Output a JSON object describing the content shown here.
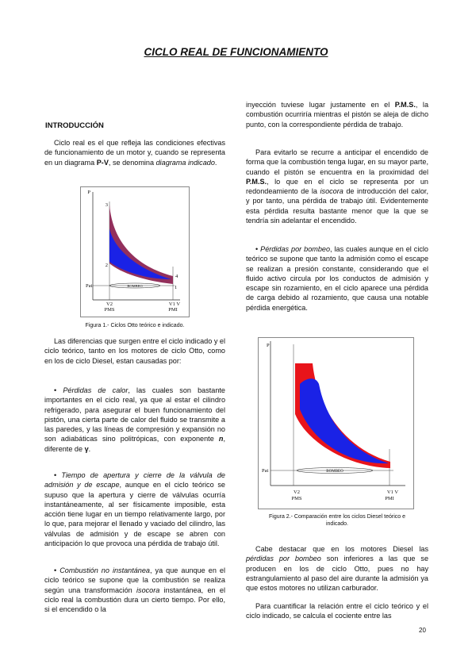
{
  "title": "CICLO REAL DE FUNCIONAMIENTO",
  "section_heading": "INTRODUCCIÓN",
  "left_column": [
    [
      "Ciclo real es el que refleja las condiciones efectivas de funcionamiento de un motor y, cuando se representa en un diagrama ",
      "P-V",
      ", se denomina ",
      "diagrama indicado",
      "."
    ],
    [
      "Las diferencias que surgen entre el ciclo indicado y el ciclo teórico, tanto en los motores de ciclo Otto, como en los de ciclo Diesel, estan causadas por:"
    ],
    [
      "• ",
      "Pérdidas de calor",
      ", las cuales son bastante importantes en el ciclo real, ya que al estar el cilindro refrigerado, para asegurar el buen funcionamiento del pistón, una cierta parte de calor del fluido se transmite a las paredes, y las líneas de compresión y expansión no son adiabáticas sino politrópicas, con exponente ",
      "n",
      ", diferente de ",
      "γ",
      "."
    ],
    [
      "• ",
      "Tiempo de apertura y cierre de la válvula de admisión y de escape",
      ", aunque en el ciclo teórico se supuso que la apertura y cierre de válvulas ocurría instantáneamente, al ser físicamente imposible, esta acción tiene lugar en un tiempo relativamente largo, por lo que, para mejorar el llenado y vaciado del cilindro, las válvulas de admisión y de escape se abren con anticipación lo que provoca una pérdida de trabajo útil."
    ],
    [
      "• ",
      "Combustión no instantánea",
      ", ya que aunque en el ciclo teórico se supone que la combustión se realiza según una transformación ",
      "isocora",
      " instantánea, en el ciclo real la combustión dura un cierto tiempo. Por ello, si el encendido o la"
    ]
  ],
  "right_column": [
    [
      "inyección tuviese lugar justamente en el ",
      "P.M.S.",
      ", la combustión ocurriría mientras el pistón se aleja de dicho punto, con la correspondiente pérdida de trabajo."
    ],
    [
      "Para evitarlo se recurre a anticipar el encendido de forma que la combustión tenga lugar, en su mayor parte, cuando el pistón se encuentra en la proximidad del ",
      "P.M.S.",
      ", lo que en el ciclo se representa por un redondeamiento de la ",
      "isocora",
      " de introducción del calor, y por tanto, una pérdida de trabajo útil. Evidentemente esta pérdida resulta bastante menor que la que se tendría sin adelantar el encendido."
    ],
    [
      "• ",
      "Pérdidas por bombeo",
      ", las cuales aunque en el ciclo teórico se supone que tanto la admisión como el escape se realizan a presión constante, considerando que el fluido activo circula por los conductos de admisión y escape sin rozamiento, en el ciclo aparece una pérdida de carga debido al rozamiento, que causa una notable pérdida energética."
    ],
    [
      "Cabe destacar que en los motores Diesel las ",
      "pérdidas por bombeo",
      " son inferiores a las que se producen en los de ciclo Otto, pues no hay estrangulamiento al paso del aire durante la admisión ya que estos motores no utilizan carburador."
    ],
    [
      "Para cuantificar la relación entre el ciclo teórico y el ciclo indicado, se calcula el cociente entre las"
    ]
  ],
  "figure_1": {
    "labels": [
      "P",
      "3",
      "2",
      "4",
      "1",
      "Pat",
      "BOMBEO",
      "V2",
      "PMS",
      "V1 V",
      "PMI"
    ],
    "caption": "Figura 1.- Ciclos Otto teórico e indicado."
  },
  "figure_2": {
    "labels": [
      "P",
      "Pat",
      "BOMBEO",
      "V2",
      "PMS",
      "V1 V",
      "PMI"
    ],
    "caption": "Figura 2.- Comparación entre los ciclos Diesel teórico e indicado."
  },
  "page_number": "20"
}
